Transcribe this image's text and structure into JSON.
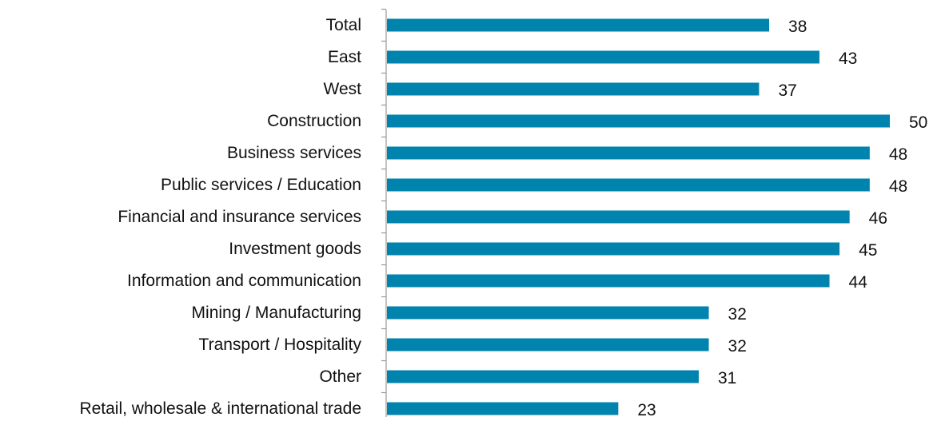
{
  "chart_data": {
    "type": "bar",
    "orientation": "horizontal",
    "categories": [
      "Total",
      "East",
      "West",
      "Construction",
      "Business services",
      "Public services / Education",
      "Financial and insurance services",
      "Investment goods",
      "Information and communication",
      "Mining / Manufacturing",
      "Transport / Hospitality",
      "Other",
      "Retail, wholesale & international trade"
    ],
    "values": [
      38,
      43,
      37,
      50,
      48,
      48,
      46,
      45,
      44,
      32,
      32,
      31,
      23
    ],
    "title": "",
    "xlabel": "",
    "ylabel": "",
    "xlim": [
      0,
      50
    ],
    "grid": false,
    "bar_color": "#0083ad",
    "data_labels": true
  }
}
